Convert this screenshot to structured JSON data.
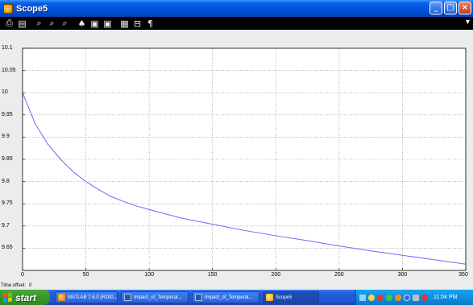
{
  "window": {
    "title": "Scope5",
    "controls": {
      "minimize": "_",
      "maximize": "□",
      "close": "×"
    }
  },
  "toolbar": {
    "buttons": [
      {
        "name": "print-icon",
        "glyph": "⎙"
      },
      {
        "name": "parameters-icon",
        "glyph": "▤"
      },
      {
        "name": "zoom-icon",
        "glyph": "⌕"
      },
      {
        "name": "zoom-x-icon",
        "glyph": "⌕"
      },
      {
        "name": "zoom-y-icon",
        "glyph": "⌕"
      },
      {
        "name": "autoscale-icon",
        "glyph": "♠"
      },
      {
        "name": "save-axes-icon",
        "glyph": "▣"
      },
      {
        "name": "restore-axes-icon",
        "glyph": "▣"
      },
      {
        "name": "floating-scope-icon",
        "glyph": "▦"
      },
      {
        "name": "lock-axes-icon",
        "glyph": "⊟"
      },
      {
        "name": "signal-selection-icon",
        "glyph": "¶"
      }
    ],
    "overflow": "▾"
  },
  "chart_data": {
    "type": "line",
    "xlim": [
      0,
      350
    ],
    "ylim": [
      9.6,
      10.1
    ],
    "xticks": [
      0,
      50,
      100,
      150,
      200,
      250,
      300,
      350
    ],
    "yticks": [
      9.65,
      9.7,
      9.75,
      9.8,
      9.85,
      9.9,
      9.95,
      10,
      10.05,
      10.1
    ],
    "grid": true,
    "line_color": "#6a6aff",
    "series": [
      {
        "x": [
          0,
          10,
          20,
          30,
          40,
          50,
          60,
          70,
          80,
          90,
          100,
          125,
          150,
          175,
          200,
          225,
          250,
          275,
          300,
          325,
          350
        ],
        "y": [
          10.0,
          9.93,
          9.884,
          9.85,
          9.822,
          9.8,
          9.782,
          9.766,
          9.755,
          9.745,
          9.737,
          9.718,
          9.704,
          9.69,
          9.678,
          9.667,
          9.655,
          9.644,
          9.634,
          9.624,
          9.614
        ]
      }
    ]
  },
  "status": {
    "time_offset_label": "Time offset:",
    "time_offset_value": "0"
  },
  "taskbar": {
    "start_label": "start",
    "tasks": [
      {
        "label": "MATLAB 7.6.0 (R200...",
        "icon": "matlab"
      },
      {
        "label": "Impact_of_Temperat...",
        "icon": "doc"
      },
      {
        "label": "Impact_of_Temperat...",
        "icon": "doc"
      },
      {
        "label": "Scope5",
        "icon": "scope"
      }
    ],
    "clock": "11:04 PM"
  }
}
